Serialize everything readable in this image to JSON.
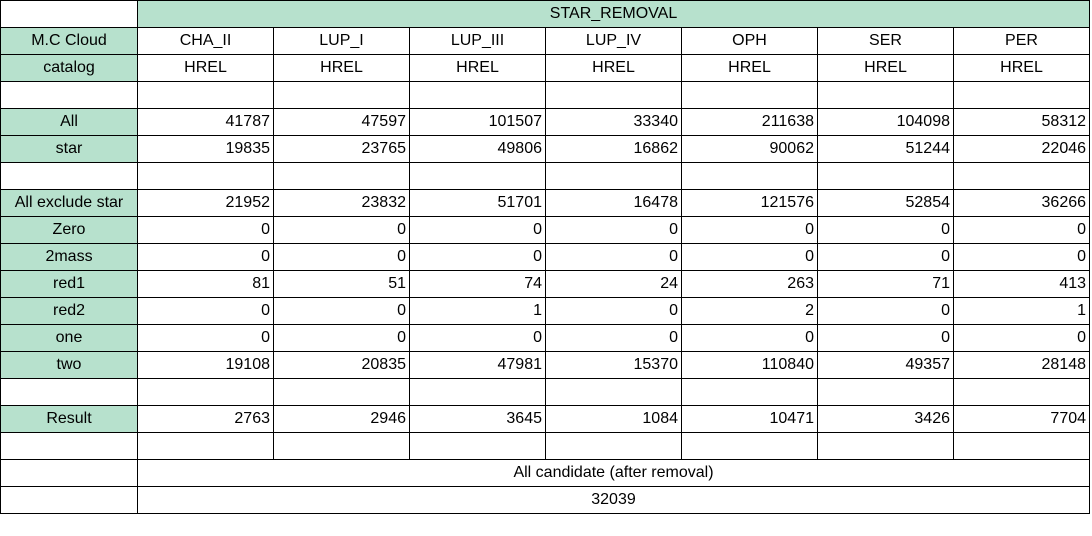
{
  "title": "STAR_REMOVAL",
  "header_rows": [
    {
      "label": "M.C Cloud",
      "values": [
        "CHA_II",
        "LUP_I",
        "LUP_III",
        "LUP_IV",
        "OPH",
        "SER",
        "PER"
      ]
    },
    {
      "label": "catalog",
      "values": [
        "HREL",
        "HREL",
        "HREL",
        "HREL",
        "HREL",
        "HREL",
        "HREL"
      ]
    }
  ],
  "group1": [
    {
      "label": "All",
      "values": [
        "41787",
        "47597",
        "101507",
        "33340",
        "211638",
        "104098",
        "58312"
      ]
    },
    {
      "label": "star",
      "values": [
        "19835",
        "23765",
        "49806",
        "16862",
        "90062",
        "51244",
        "22046"
      ]
    }
  ],
  "group2": [
    {
      "label": "All exclude star",
      "values": [
        "21952",
        "23832",
        "51701",
        "16478",
        "121576",
        "52854",
        "36266"
      ]
    },
    {
      "label": "Zero",
      "values": [
        "0",
        "0",
        "0",
        "0",
        "0",
        "0",
        "0"
      ]
    },
    {
      "label": "2mass",
      "values": [
        "0",
        "0",
        "0",
        "0",
        "0",
        "0",
        "0"
      ]
    },
    {
      "label": "red1",
      "values": [
        "81",
        "51",
        "74",
        "24",
        "263",
        "71",
        "413"
      ]
    },
    {
      "label": "red2",
      "values": [
        "0",
        "0",
        "1",
        "0",
        "2",
        "0",
        "1"
      ]
    },
    {
      "label": "one",
      "values": [
        "0",
        "0",
        "0",
        "0",
        "0",
        "0",
        "0"
      ]
    },
    {
      "label": "two",
      "values": [
        "19108",
        "20835",
        "47981",
        "15370",
        "110840",
        "49357",
        "28148"
      ]
    }
  ],
  "result": {
    "label": "Result",
    "values": [
      "2763",
      "2946",
      "3645",
      "1084",
      "10471",
      "3426",
      "7704"
    ]
  },
  "summary": {
    "label": "All candidate (after removal)",
    "value": "32039"
  }
}
